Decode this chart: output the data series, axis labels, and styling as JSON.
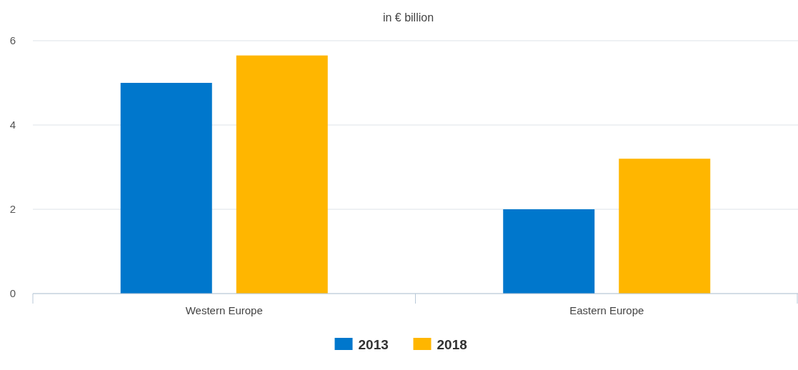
{
  "chart_data": {
    "type": "bar",
    "title": "in € billion",
    "categories": [
      "Western Europe",
      "Eastern Europe"
    ],
    "series": [
      {
        "name": "2013",
        "color": "#0077cc",
        "values": [
          5.0,
          2.0
        ]
      },
      {
        "name": "2018",
        "color": "#ffb600",
        "values": [
          5.65,
          3.2
        ]
      }
    ],
    "ylim": [
      0,
      6
    ],
    "yticks": [
      0,
      2,
      4,
      6
    ],
    "grid": "y",
    "legend": "bottom"
  }
}
